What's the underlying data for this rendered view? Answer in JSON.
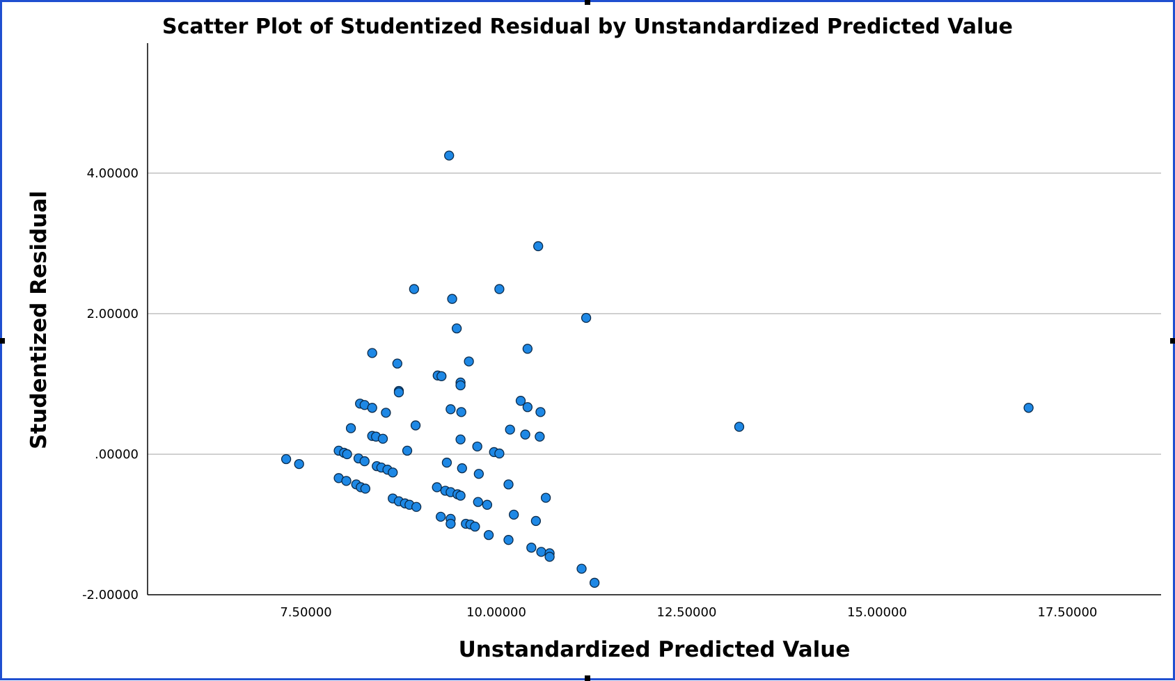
{
  "chart_data": {
    "type": "scatter",
    "title": "Scatter Plot of Studentized Residual by Unstandardized Predicted Value",
    "xlabel": "Unstandardized Predicted Value",
    "ylabel": "Studentized Residual",
    "xlim": [
      5.42,
      18.73
    ],
    "ylim": [
      -2.0,
      5.85
    ],
    "x_ticks": [
      7.5,
      10.0,
      12.5,
      15.0,
      17.5
    ],
    "x_tick_labels": [
      "7.50000",
      "10.00000",
      "12.50000",
      "15.00000",
      "17.50000"
    ],
    "y_ticks": [
      -2.0,
      0.0,
      2.0,
      4.0
    ],
    "y_tick_labels": [
      "-2.00000",
      ".00000",
      "2.00000",
      "4.00000"
    ],
    "grid": "horizontal",
    "legend": "none",
    "colors": {
      "marker_fill": "#1e88e5",
      "marker_stroke": "#0a2a4a",
      "gridline": "#c0c0c0",
      "axis": "#000000",
      "frame": "#1f4fd0"
    },
    "series": [
      {
        "points": [
          [
            9.38,
            4.25
          ],
          [
            10.55,
            2.96
          ],
          [
            8.92,
            2.35
          ],
          [
            10.04,
            2.35
          ],
          [
            9.42,
            2.21
          ],
          [
            11.18,
            1.94
          ],
          [
            9.48,
            1.79
          ],
          [
            8.37,
            1.44
          ],
          [
            10.41,
            1.5
          ],
          [
            8.7,
            1.29
          ],
          [
            9.64,
            1.32
          ],
          [
            9.23,
            1.12
          ],
          [
            9.28,
            1.11
          ],
          [
            9.53,
            1.02
          ],
          [
            9.53,
            0.98
          ],
          [
            8.72,
            0.9
          ],
          [
            8.72,
            0.88
          ],
          [
            8.21,
            0.72
          ],
          [
            8.27,
            0.7
          ],
          [
            8.37,
            0.66
          ],
          [
            8.55,
            0.59
          ],
          [
            9.4,
            0.64
          ],
          [
            9.54,
            0.6
          ],
          [
            10.32,
            0.76
          ],
          [
            10.41,
            0.67
          ],
          [
            10.58,
            0.6
          ],
          [
            8.09,
            0.37
          ],
          [
            8.94,
            0.41
          ],
          [
            10.18,
            0.35
          ],
          [
            10.38,
            0.28
          ],
          [
            10.57,
            0.25
          ],
          [
            8.37,
            0.26
          ],
          [
            8.42,
            0.25
          ],
          [
            8.51,
            0.22
          ],
          [
            9.53,
            0.21
          ],
          [
            9.75,
            0.11
          ],
          [
            7.93,
            0.05
          ],
          [
            8.0,
            0.02
          ],
          [
            8.04,
            0.0
          ],
          [
            8.83,
            0.05
          ],
          [
            9.97,
            0.03
          ],
          [
            10.04,
            0.01
          ],
          [
            7.24,
            -0.07
          ],
          [
            7.41,
            -0.14
          ],
          [
            8.19,
            -0.06
          ],
          [
            8.27,
            -0.1
          ],
          [
            8.43,
            -0.17
          ],
          [
            8.49,
            -0.19
          ],
          [
            8.57,
            -0.22
          ],
          [
            8.64,
            -0.26
          ],
          [
            9.35,
            -0.12
          ],
          [
            9.55,
            -0.2
          ],
          [
            9.77,
            -0.28
          ],
          [
            7.93,
            -0.34
          ],
          [
            8.03,
            -0.38
          ],
          [
            8.16,
            -0.43
          ],
          [
            8.22,
            -0.47
          ],
          [
            8.28,
            -0.49
          ],
          [
            9.22,
            -0.47
          ],
          [
            9.33,
            -0.52
          ],
          [
            9.4,
            -0.54
          ],
          [
            9.49,
            -0.57
          ],
          [
            9.53,
            -0.59
          ],
          [
            10.16,
            -0.43
          ],
          [
            8.64,
            -0.63
          ],
          [
            8.72,
            -0.67
          ],
          [
            8.8,
            -0.7
          ],
          [
            8.86,
            -0.72
          ],
          [
            8.95,
            -0.75
          ],
          [
            9.76,
            -0.68
          ],
          [
            9.88,
            -0.72
          ],
          [
            10.65,
            -0.62
          ],
          [
            9.27,
            -0.89
          ],
          [
            9.4,
            -0.92
          ],
          [
            9.4,
            -0.99
          ],
          [
            9.6,
            -0.99
          ],
          [
            9.66,
            -1.0
          ],
          [
            9.72,
            -1.03
          ],
          [
            10.23,
            -0.86
          ],
          [
            10.52,
            -0.95
          ],
          [
            9.9,
            -1.15
          ],
          [
            10.16,
            -1.22
          ],
          [
            10.46,
            -1.33
          ],
          [
            10.59,
            -1.39
          ],
          [
            10.7,
            -1.41
          ],
          [
            10.7,
            -1.46
          ],
          [
            11.12,
            -1.63
          ],
          [
            11.29,
            -1.83
          ],
          [
            13.19,
            0.39
          ],
          [
            16.99,
            0.66
          ]
        ]
      }
    ]
  }
}
